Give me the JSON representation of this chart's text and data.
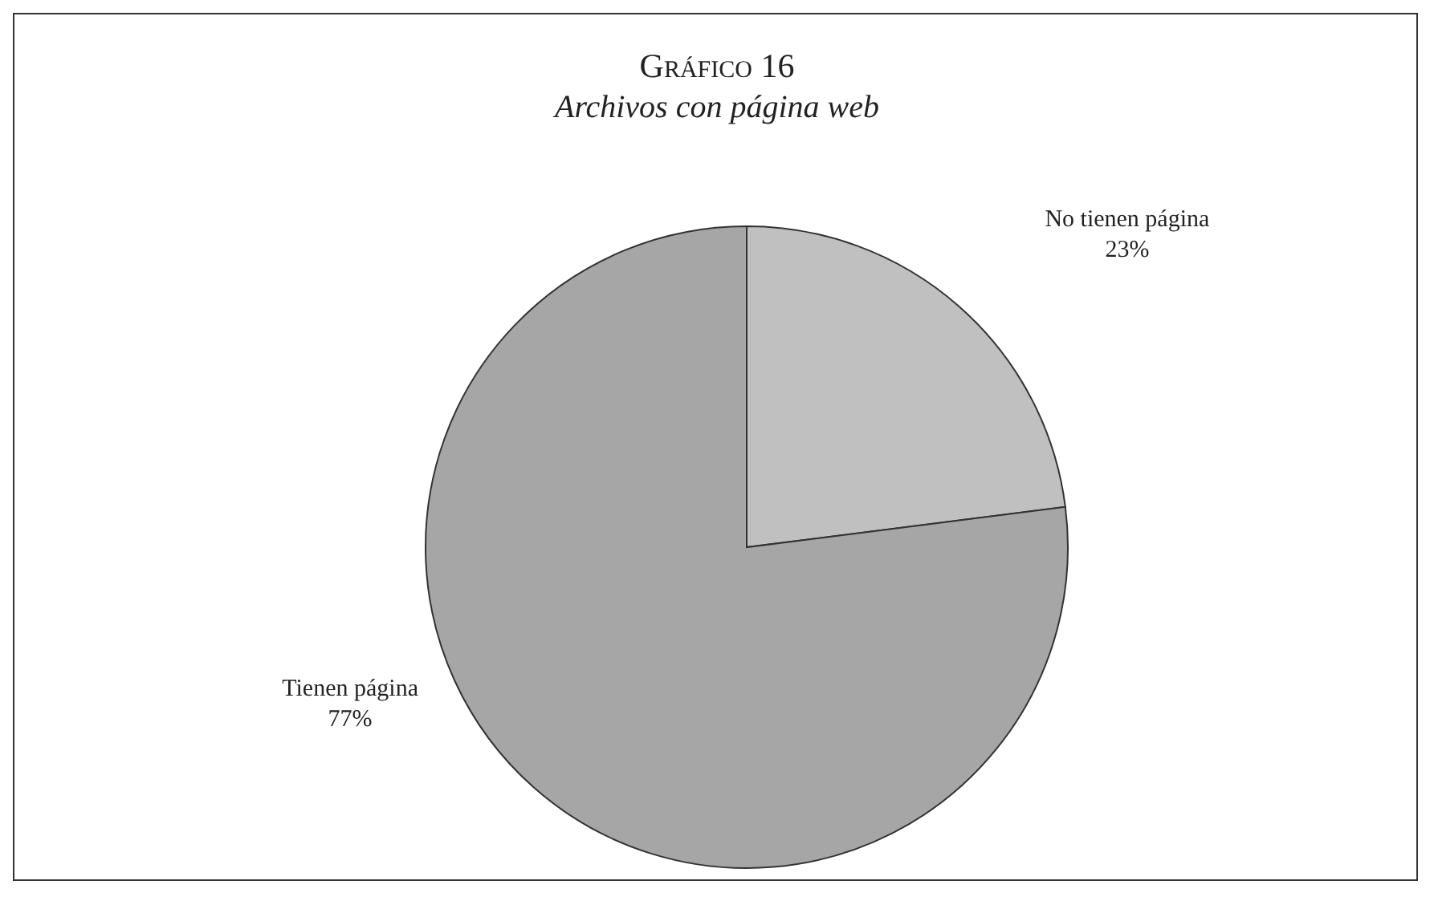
{
  "chart_data": {
    "type": "pie",
    "title": "Gráfico 16",
    "subtitle": "Archivos con página web",
    "categories": [
      "No tienen página",
      "Tienen página"
    ],
    "values": [
      23,
      77
    ],
    "value_labels": [
      "23%",
      "77%"
    ],
    "colors": [
      "#c0c0c0",
      "#a6a6a6"
    ]
  }
}
